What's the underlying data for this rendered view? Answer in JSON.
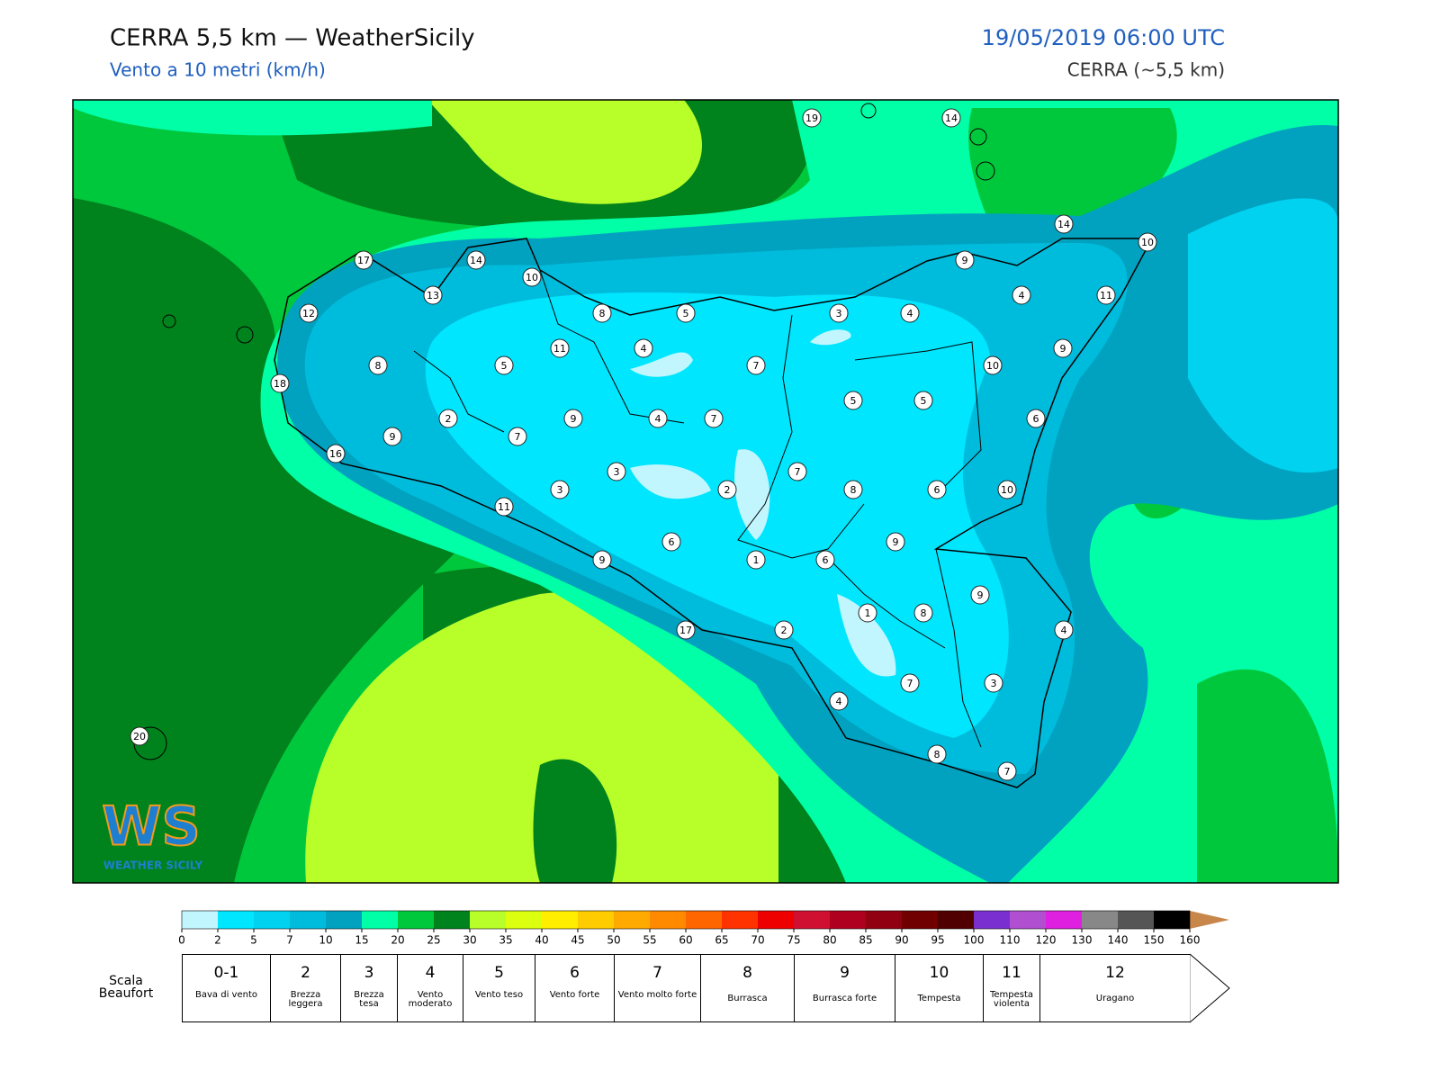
{
  "header": {
    "title": "CERRA 5,5 km — WeatherSicily",
    "subtitle": "Vento a 10 metri (km/h)",
    "datetime": "19/05/2019 06:00 UTC",
    "model": "CERRA (~5,5 km)"
  },
  "stations": [
    19,
    14,
    14,
    10,
    9,
    17,
    14,
    10,
    13,
    12,
    8,
    5,
    3,
    4,
    4,
    11,
    11,
    4,
    9,
    8,
    5,
    7,
    10,
    18,
    5,
    5,
    2,
    9,
    4,
    7,
    6,
    9,
    7,
    16,
    3,
    7,
    3,
    2,
    8,
    6,
    10,
    11,
    6,
    9,
    9,
    1,
    6,
    9,
    1,
    8,
    17,
    2,
    4,
    7,
    3,
    4,
    20,
    8,
    7
  ],
  "logo": {
    "mark": "WS",
    "name": "WEATHER SICILY"
  },
  "colorbar": {
    "ticks": [
      0,
      2,
      5,
      7,
      10,
      15,
      20,
      25,
      30,
      35,
      40,
      45,
      50,
      55,
      60,
      65,
      70,
      75,
      80,
      85,
      90,
      95,
      100,
      110,
      120,
      130,
      140,
      150,
      160
    ],
    "colors": [
      "#c2f6ff",
      "#00e6ff",
      "#00d2f0",
      "#00bcdc",
      "#00a2c0",
      "#00ffa6",
      "#00c83c",
      "#00821c",
      "#b8ff2a",
      "#dcff10",
      "#ffee00",
      "#ffcc00",
      "#ffaa00",
      "#ff8a00",
      "#ff6600",
      "#ff3300",
      "#ee0000",
      "#d01030",
      "#b00020",
      "#900010",
      "#700000",
      "#500000",
      "#7a30d0",
      "#b050d0",
      "#e020e0",
      "#888888",
      "#555555",
      "#000000",
      "#8b4a2a",
      "#c8864a"
    ]
  },
  "beaufort": {
    "label": "Scala Beaufort",
    "levels": [
      {
        "force": "0-1",
        "name": "Bava di vento"
      },
      {
        "force": "2",
        "name": "Brezza leggera"
      },
      {
        "force": "3",
        "name": "Brezza tesa"
      },
      {
        "force": "4",
        "name": "Vento moderato"
      },
      {
        "force": "5",
        "name": "Vento teso"
      },
      {
        "force": "6",
        "name": "Vento forte"
      },
      {
        "force": "7",
        "name": "Vento molto forte"
      },
      {
        "force": "8",
        "name": "Burrasca"
      },
      {
        "force": "9",
        "name": "Burrasca forte"
      },
      {
        "force": "10",
        "name": "Tempesta"
      },
      {
        "force": "11",
        "name": "Tempesta violenta"
      },
      {
        "force": "12",
        "name": "Uragano"
      }
    ]
  }
}
